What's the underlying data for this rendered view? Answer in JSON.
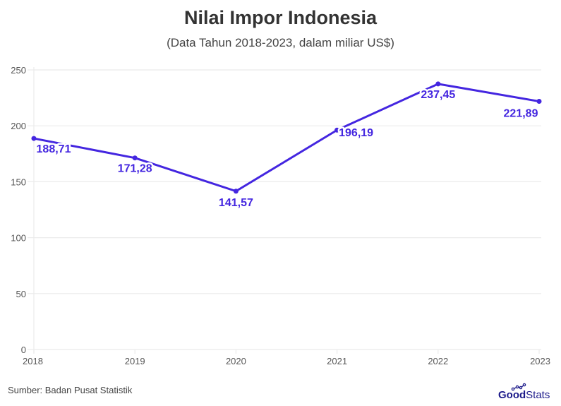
{
  "header": {
    "title": "Nilai Impor Indonesia",
    "subtitle": "(Data Tahun 2018-2023, dalam miliar US$)"
  },
  "footer": {
    "source": "Sumber: Badan Pusat Statistik",
    "logo_bold": "Good",
    "logo_light": "Stats"
  },
  "colors": {
    "line": "#4426e0",
    "grid": "#ebebeb",
    "logo": "#1c1a8a"
  },
  "chart_data": {
    "type": "line",
    "title": "Nilai Impor Indonesia",
    "subtitle": "(Data Tahun 2018-2023, dalam miliar US$)",
    "xlabel": "",
    "ylabel": "",
    "categories": [
      "2018",
      "2019",
      "2020",
      "2021",
      "2022",
      "2023"
    ],
    "series": [
      {
        "name": "Nilai Impor",
        "values": [
          188.71,
          171.28,
          141.57,
          196.19,
          237.45,
          221.89
        ],
        "labels": [
          "188,71",
          "171,28",
          "141,57",
          "196,19",
          "237,45",
          "221,89"
        ]
      }
    ],
    "ylim": [
      0,
      250
    ],
    "yticks": [
      "0",
      "50",
      "100",
      "150",
      "200",
      "250"
    ],
    "grid": true,
    "legend": "none",
    "source": "Sumber: Badan Pusat Statistik"
  }
}
